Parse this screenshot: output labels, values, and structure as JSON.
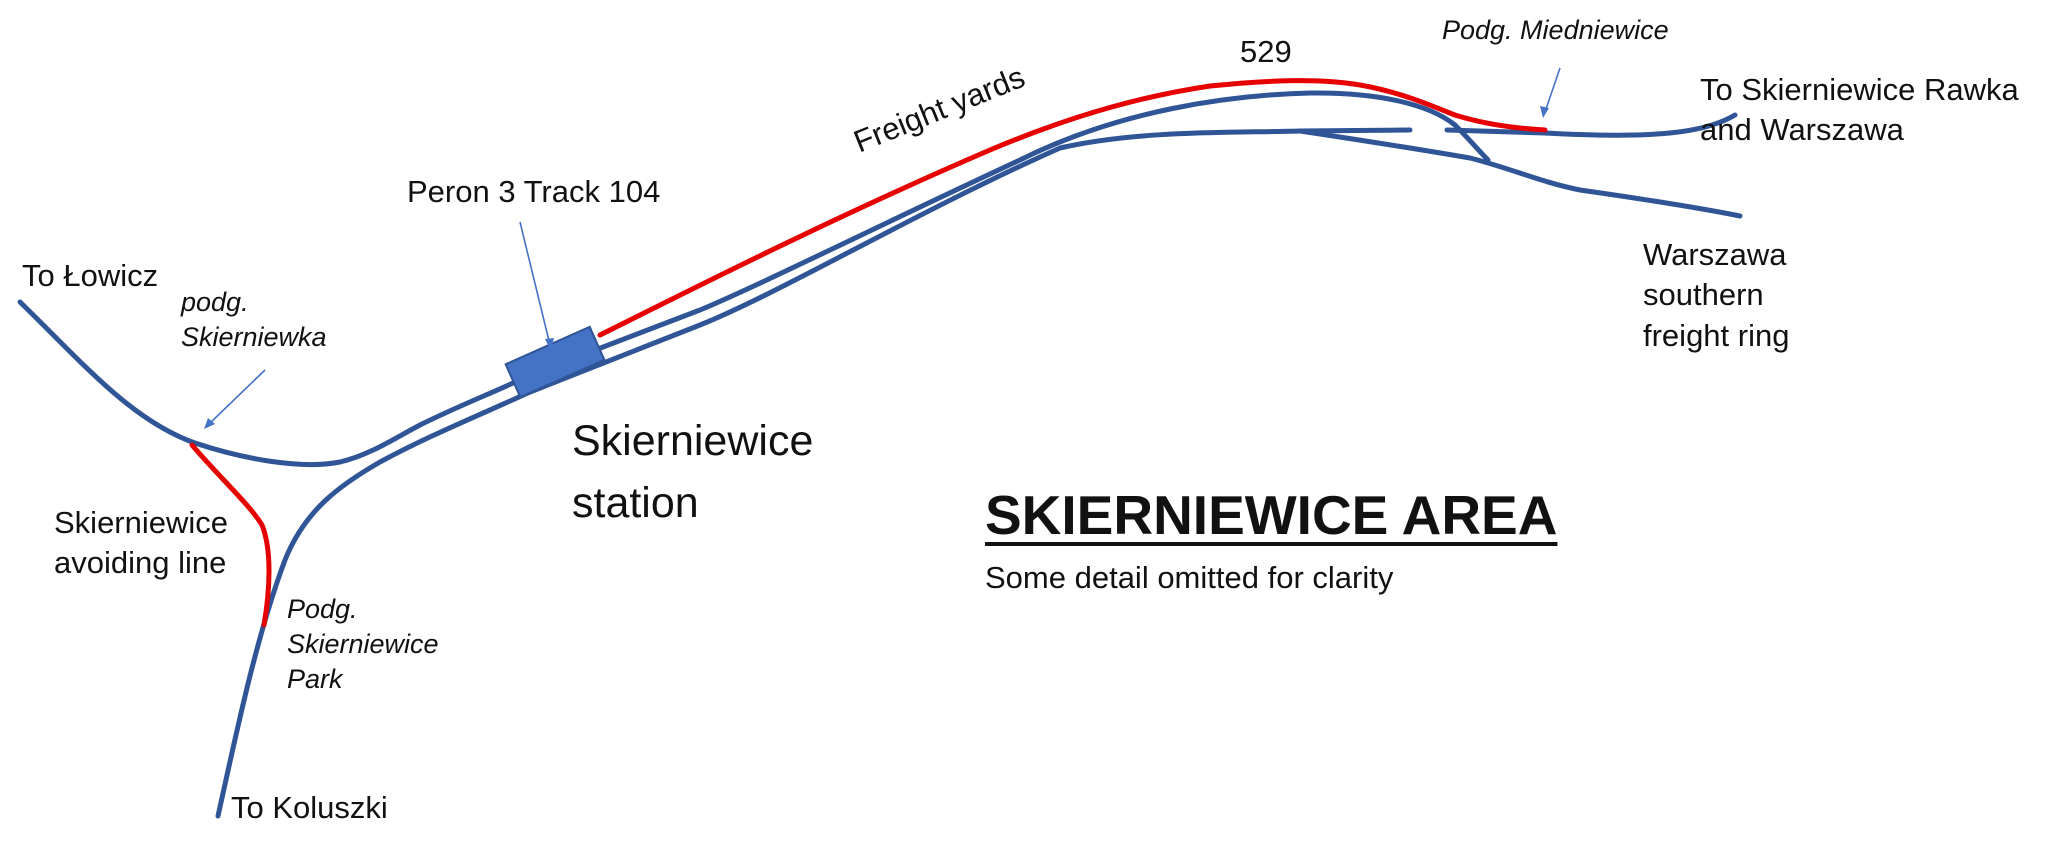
{
  "map": {
    "title": "SKIERNIEWICE  AREA",
    "subtitle": "Some detail omitted for clarity",
    "colors": {
      "main_line": "#2F5597",
      "highlighted_line": "#E60000",
      "platform": "#4472C4",
      "pointer": "#4472C4"
    },
    "labels": {
      "to_lowicz": "To Łowicz",
      "podg_skierniewka": [
        "podg.",
        "Skierniewka"
      ],
      "avoiding_line": [
        "Skierniewice",
        "avoiding line"
      ],
      "podg_skierniewice_park": [
        "Podg.",
        "Skierniewice",
        "Park"
      ],
      "to_koluszki": "To Koluszki",
      "peron_3_track_104": "Peron 3 Track 104",
      "skierniewice_station": [
        "Skierniewice",
        "station"
      ],
      "freight_yards": "Freight yards",
      "route_529": "529",
      "podg_miedniewice": "Podg. Miedniewice",
      "to_skierniewice_rawka": [
        "To Skierniewice Rawka",
        "and Warszawa"
      ],
      "warszawa_ring": [
        "Warszawa",
        "southern",
        "freight ring"
      ]
    }
  }
}
